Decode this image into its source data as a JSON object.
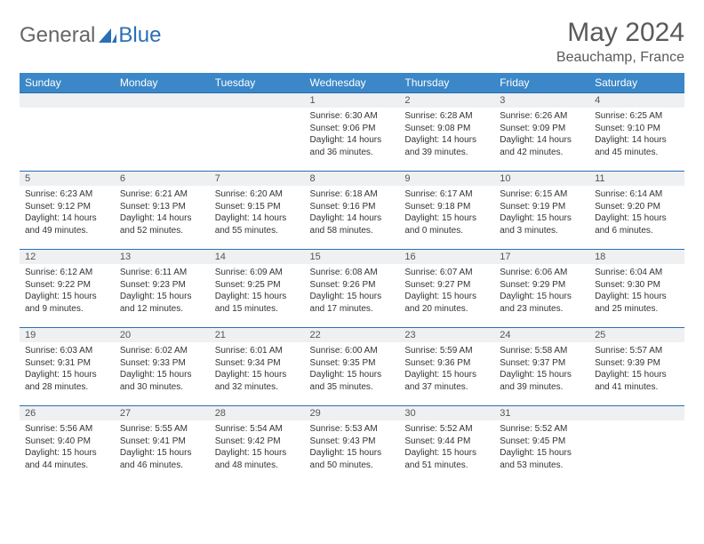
{
  "brand": {
    "text_general": "General",
    "text_blue": "Blue",
    "icon_color": "#2a6fb5"
  },
  "title": {
    "month_year": "May 2024",
    "location": "Beauchamp, France"
  },
  "colors": {
    "header_bg": "#3b87c8",
    "header_text": "#ffffff",
    "border": "#2a6fb5",
    "daynum_bg": "#eef0f2",
    "text": "#333333",
    "title_text": "#5a5a5a"
  },
  "day_headers": [
    "Sunday",
    "Monday",
    "Tuesday",
    "Wednesday",
    "Thursday",
    "Friday",
    "Saturday"
  ],
  "weeks": [
    [
      null,
      null,
      null,
      {
        "n": "1",
        "sr": "Sunrise: 6:30 AM",
        "ss": "Sunset: 9:06 PM",
        "dl": "Daylight: 14 hours and 36 minutes."
      },
      {
        "n": "2",
        "sr": "Sunrise: 6:28 AM",
        "ss": "Sunset: 9:08 PM",
        "dl": "Daylight: 14 hours and 39 minutes."
      },
      {
        "n": "3",
        "sr": "Sunrise: 6:26 AM",
        "ss": "Sunset: 9:09 PM",
        "dl": "Daylight: 14 hours and 42 minutes."
      },
      {
        "n": "4",
        "sr": "Sunrise: 6:25 AM",
        "ss": "Sunset: 9:10 PM",
        "dl": "Daylight: 14 hours and 45 minutes."
      }
    ],
    [
      {
        "n": "5",
        "sr": "Sunrise: 6:23 AM",
        "ss": "Sunset: 9:12 PM",
        "dl": "Daylight: 14 hours and 49 minutes."
      },
      {
        "n": "6",
        "sr": "Sunrise: 6:21 AM",
        "ss": "Sunset: 9:13 PM",
        "dl": "Daylight: 14 hours and 52 minutes."
      },
      {
        "n": "7",
        "sr": "Sunrise: 6:20 AM",
        "ss": "Sunset: 9:15 PM",
        "dl": "Daylight: 14 hours and 55 minutes."
      },
      {
        "n": "8",
        "sr": "Sunrise: 6:18 AM",
        "ss": "Sunset: 9:16 PM",
        "dl": "Daylight: 14 hours and 58 minutes."
      },
      {
        "n": "9",
        "sr": "Sunrise: 6:17 AM",
        "ss": "Sunset: 9:18 PM",
        "dl": "Daylight: 15 hours and 0 minutes."
      },
      {
        "n": "10",
        "sr": "Sunrise: 6:15 AM",
        "ss": "Sunset: 9:19 PM",
        "dl": "Daylight: 15 hours and 3 minutes."
      },
      {
        "n": "11",
        "sr": "Sunrise: 6:14 AM",
        "ss": "Sunset: 9:20 PM",
        "dl": "Daylight: 15 hours and 6 minutes."
      }
    ],
    [
      {
        "n": "12",
        "sr": "Sunrise: 6:12 AM",
        "ss": "Sunset: 9:22 PM",
        "dl": "Daylight: 15 hours and 9 minutes."
      },
      {
        "n": "13",
        "sr": "Sunrise: 6:11 AM",
        "ss": "Sunset: 9:23 PM",
        "dl": "Daylight: 15 hours and 12 minutes."
      },
      {
        "n": "14",
        "sr": "Sunrise: 6:09 AM",
        "ss": "Sunset: 9:25 PM",
        "dl": "Daylight: 15 hours and 15 minutes."
      },
      {
        "n": "15",
        "sr": "Sunrise: 6:08 AM",
        "ss": "Sunset: 9:26 PM",
        "dl": "Daylight: 15 hours and 17 minutes."
      },
      {
        "n": "16",
        "sr": "Sunrise: 6:07 AM",
        "ss": "Sunset: 9:27 PM",
        "dl": "Daylight: 15 hours and 20 minutes."
      },
      {
        "n": "17",
        "sr": "Sunrise: 6:06 AM",
        "ss": "Sunset: 9:29 PM",
        "dl": "Daylight: 15 hours and 23 minutes."
      },
      {
        "n": "18",
        "sr": "Sunrise: 6:04 AM",
        "ss": "Sunset: 9:30 PM",
        "dl": "Daylight: 15 hours and 25 minutes."
      }
    ],
    [
      {
        "n": "19",
        "sr": "Sunrise: 6:03 AM",
        "ss": "Sunset: 9:31 PM",
        "dl": "Daylight: 15 hours and 28 minutes."
      },
      {
        "n": "20",
        "sr": "Sunrise: 6:02 AM",
        "ss": "Sunset: 9:33 PM",
        "dl": "Daylight: 15 hours and 30 minutes."
      },
      {
        "n": "21",
        "sr": "Sunrise: 6:01 AM",
        "ss": "Sunset: 9:34 PM",
        "dl": "Daylight: 15 hours and 32 minutes."
      },
      {
        "n": "22",
        "sr": "Sunrise: 6:00 AM",
        "ss": "Sunset: 9:35 PM",
        "dl": "Daylight: 15 hours and 35 minutes."
      },
      {
        "n": "23",
        "sr": "Sunrise: 5:59 AM",
        "ss": "Sunset: 9:36 PM",
        "dl": "Daylight: 15 hours and 37 minutes."
      },
      {
        "n": "24",
        "sr": "Sunrise: 5:58 AM",
        "ss": "Sunset: 9:37 PM",
        "dl": "Daylight: 15 hours and 39 minutes."
      },
      {
        "n": "25",
        "sr": "Sunrise: 5:57 AM",
        "ss": "Sunset: 9:39 PM",
        "dl": "Daylight: 15 hours and 41 minutes."
      }
    ],
    [
      {
        "n": "26",
        "sr": "Sunrise: 5:56 AM",
        "ss": "Sunset: 9:40 PM",
        "dl": "Daylight: 15 hours and 44 minutes."
      },
      {
        "n": "27",
        "sr": "Sunrise: 5:55 AM",
        "ss": "Sunset: 9:41 PM",
        "dl": "Daylight: 15 hours and 46 minutes."
      },
      {
        "n": "28",
        "sr": "Sunrise: 5:54 AM",
        "ss": "Sunset: 9:42 PM",
        "dl": "Daylight: 15 hours and 48 minutes."
      },
      {
        "n": "29",
        "sr": "Sunrise: 5:53 AM",
        "ss": "Sunset: 9:43 PM",
        "dl": "Daylight: 15 hours and 50 minutes."
      },
      {
        "n": "30",
        "sr": "Sunrise: 5:52 AM",
        "ss": "Sunset: 9:44 PM",
        "dl": "Daylight: 15 hours and 51 minutes."
      },
      {
        "n": "31",
        "sr": "Sunrise: 5:52 AM",
        "ss": "Sunset: 9:45 PM",
        "dl": "Daylight: 15 hours and 53 minutes."
      },
      null
    ]
  ]
}
